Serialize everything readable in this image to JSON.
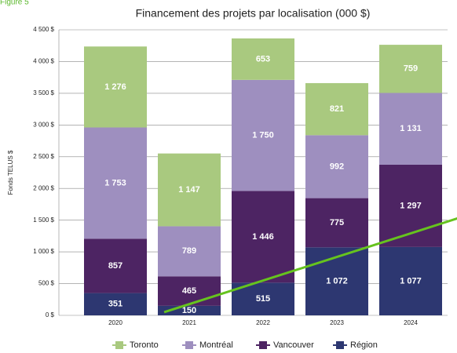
{
  "figure_label": "Figure 5",
  "chart_data": {
    "type": "stacked_bar",
    "title": "Financement des projets par localisation (000 $)",
    "y_label": "Fonds TELUS $",
    "categories": [
      "2020",
      "2021",
      "2022",
      "2023",
      "2024"
    ],
    "series": [
      {
        "name": "Toronto",
        "color": "#a9c97f",
        "values": [
          1276,
          1147,
          653,
          821,
          759
        ],
        "value_labels": [
          "1 276",
          "1 147",
          "653",
          "821",
          "759"
        ]
      },
      {
        "name": "Montréal",
        "color": "#9e8fbf",
        "values": [
          1753,
          789,
          1750,
          992,
          1131
        ],
        "value_labels": [
          "1 753",
          "789",
          "1 750",
          "992",
          "1 131"
        ]
      },
      {
        "name": "Vancouver",
        "color": "#4d2463",
        "values": [
          857,
          465,
          1446,
          775,
          1297
        ],
        "value_labels": [
          "857",
          "465",
          "1 446",
          "775",
          "1 297"
        ]
      },
      {
        "name": "Région",
        "color": "#2d3771",
        "values": [
          351,
          150,
          515,
          1072,
          1077
        ],
        "value_labels": [
          "351",
          "150",
          "515",
          "1 072",
          "1 077"
        ]
      }
    ],
    "trend": {
      "color": "#66c31e",
      "x": [
        0.66,
        4.64
      ],
      "values": [
        50,
        1530
      ]
    },
    "ylim": [
      0,
      4500
    ],
    "yticks": [
      {
        "value": 0,
        "label": "0 $"
      },
      {
        "value": 500,
        "label": "500 $"
      },
      {
        "value": 1000,
        "label": "1 000 $"
      },
      {
        "value": 1500,
        "label": "1 500 $"
      },
      {
        "value": 2000,
        "label": "2 000 $"
      },
      {
        "value": 2500,
        "label": "2 500 $"
      },
      {
        "value": 3000,
        "label": "3 000 $"
      },
      {
        "value": 3500,
        "label": "3 500 $"
      },
      {
        "value": 4000,
        "label": "4 000 $"
      },
      {
        "value": 4500,
        "label": "4 500 $"
      }
    ],
    "grid": true
  }
}
